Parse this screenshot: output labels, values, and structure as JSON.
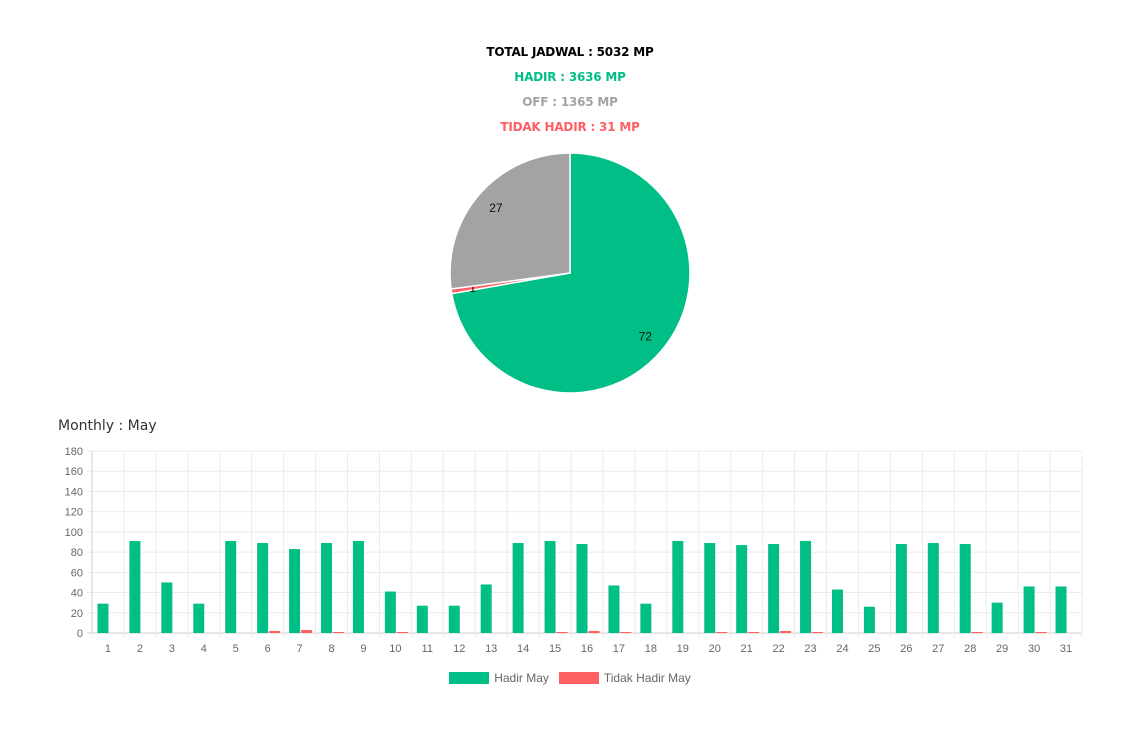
{
  "summary": {
    "total": "TOTAL JADWAL : 5032 MP",
    "hadir": "HADIR : 3636 MP",
    "off": "OFF : 1365 MP",
    "tidak_hadir": "TIDAK HADIR : 31 MP"
  },
  "colors": {
    "hadir": "#00bf86",
    "off": "#a3a3a3",
    "tidak_hadir": "#fe5f63",
    "total": "#000000"
  },
  "monthly_label": "Monthly : May",
  "chart_data": [
    {
      "type": "pie",
      "slices": [
        {
          "key": "hadir",
          "label": "72",
          "value": 3636,
          "color": "#00bf86"
        },
        {
          "key": "tidak_hadir",
          "label": "1",
          "value": 31,
          "color": "#fe5f63"
        },
        {
          "key": "off",
          "label": "27",
          "value": 1365,
          "color": "#a3a3a3"
        }
      ]
    },
    {
      "type": "bar",
      "categories": [
        "1",
        "2",
        "3",
        "4",
        "5",
        "6",
        "7",
        "8",
        "9",
        "10",
        "11",
        "12",
        "13",
        "14",
        "15",
        "16",
        "17",
        "18",
        "19",
        "20",
        "21",
        "22",
        "23",
        "24",
        "25",
        "26",
        "27",
        "28",
        "29",
        "30",
        "31"
      ],
      "series": [
        {
          "name": "Hadir May",
          "color": "#00bf86",
          "values": [
            29,
            91,
            50,
            29,
            91,
            89,
            83,
            89,
            91,
            41,
            27,
            27,
            48,
            89,
            91,
            88,
            47,
            29,
            91,
            89,
            87,
            88,
            91,
            43,
            26,
            88,
            89,
            88,
            30,
            46,
            46
          ]
        },
        {
          "name": "Tidak Hadir May",
          "color": "#fe5f63",
          "values": [
            0,
            0,
            0,
            0,
            0,
            2,
            3,
            1,
            0,
            1,
            0,
            0,
            0,
            0,
            1,
            2,
            1,
            0,
            0,
            1,
            1,
            2,
            1,
            0,
            0,
            0,
            0,
            1,
            0,
            1,
            0
          ]
        }
      ],
      "ylim": [
        0,
        180
      ],
      "yticks": [
        0,
        20,
        40,
        60,
        80,
        100,
        120,
        140,
        160,
        180
      ],
      "grid": true,
      "legend": "bottom"
    }
  ]
}
